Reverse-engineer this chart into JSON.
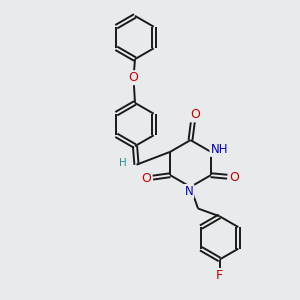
{
  "bg_color": "#e8eaec",
  "bond_color": "#1a1a1a",
  "bond_width": 1.4,
  "atom_colors": {
    "O": "#cc0000",
    "N": "#0000cc",
    "F": "#cc0000",
    "H": "#2a9090",
    "C": "#1a1a1a"
  },
  "font_size": 7.5,
  "figsize": [
    3.0,
    3.0
  ],
  "dpi": 100
}
